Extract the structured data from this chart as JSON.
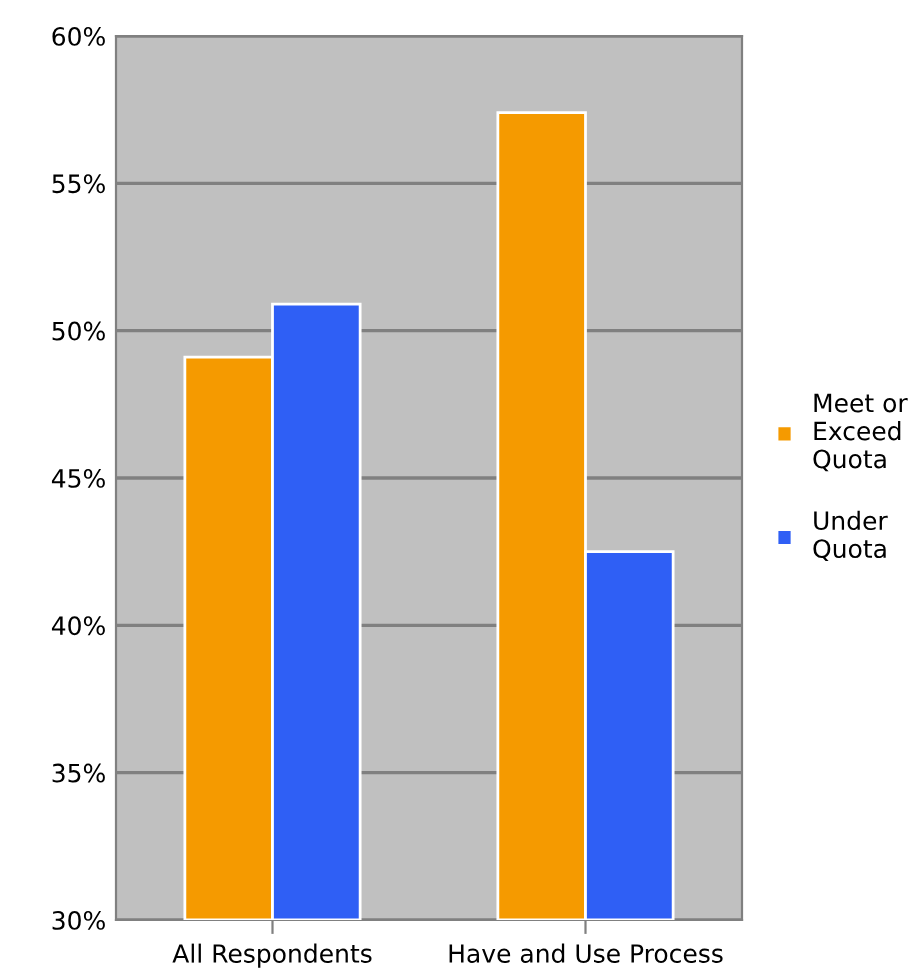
{
  "chart_data": {
    "type": "bar",
    "categories": [
      "All Respondents",
      "Have and Use Process"
    ],
    "series": [
      {
        "name": "Meet or\nExceed\nQuota",
        "color": "#f59a00",
        "values": [
          49.1,
          57.4
        ]
      },
      {
        "name": "Under\nQuota",
        "color": "#2f5ff5",
        "values": [
          50.9,
          42.5
        ]
      }
    ],
    "ylim": [
      30,
      60
    ],
    "yticks": [
      {
        "value": 30,
        "label": "30%"
      },
      {
        "value": 35,
        "label": "35%"
      },
      {
        "value": 40,
        "label": "40%"
      },
      {
        "value": 45,
        "label": "45%"
      },
      {
        "value": 50,
        "label": "50%"
      },
      {
        "value": 55,
        "label": "55%"
      },
      {
        "value": 60,
        "label": "60%"
      }
    ],
    "grid": "y",
    "legend": "right"
  }
}
